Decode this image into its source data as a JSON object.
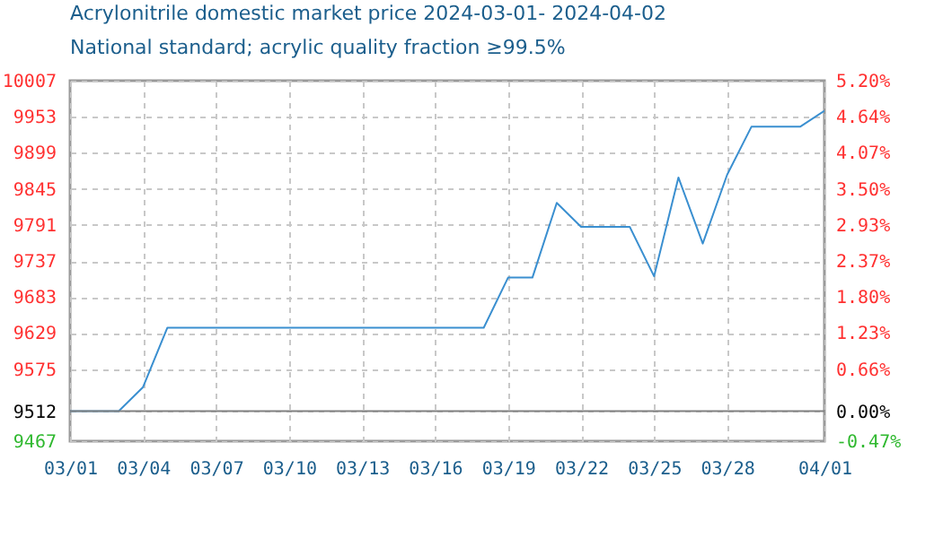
{
  "chart_data": {
    "type": "line",
    "title": "Acrylonitrile domestic market price 2024-03-01- 2024-04-02",
    "subtitle": "National standard; acrylic quality fraction ≥99.5%",
    "x": [
      "2024-03-01",
      "2024-03-02",
      "2024-03-03",
      "2024-03-04",
      "2024-03-05",
      "2024-03-06",
      "2024-03-07",
      "2024-03-08",
      "2024-03-09",
      "2024-03-10",
      "2024-03-11",
      "2024-03-12",
      "2024-03-13",
      "2024-03-14",
      "2024-03-15",
      "2024-03-16",
      "2024-03-17",
      "2024-03-18",
      "2024-03-19",
      "2024-03-20",
      "2024-03-21",
      "2024-03-22",
      "2024-03-23",
      "2024-03-24",
      "2024-03-25",
      "2024-03-26",
      "2024-03-27",
      "2024-03-28",
      "2024-03-29",
      "2024-03-30",
      "2024-03-31",
      "2024-04-01"
    ],
    "series": [
      {
        "color": "#3a8fd0",
        "values": [
          9512,
          9512,
          9512,
          9548,
          9637,
          9637,
          9637,
          9637,
          9637,
          9637,
          9637,
          9637,
          9637,
          9637,
          9637,
          9637,
          9637,
          9637,
          9712,
          9712,
          9824,
          9788,
          9788,
          9788,
          9714,
          9862,
          9763,
          9866,
          9938,
          9938,
          9938,
          9962
        ]
      }
    ],
    "xlim": [
      "2024-03-01",
      "2024-04-01"
    ],
    "xticks": [
      {
        "value": "2024-03-01",
        "label": "03/01"
      },
      {
        "value": "2024-03-04",
        "label": "03/04"
      },
      {
        "value": "2024-03-07",
        "label": "03/07"
      },
      {
        "value": "2024-03-10",
        "label": "03/10"
      },
      {
        "value": "2024-03-13",
        "label": "03/13"
      },
      {
        "value": "2024-03-16",
        "label": "03/16"
      },
      {
        "value": "2024-03-19",
        "label": "03/19"
      },
      {
        "value": "2024-03-22",
        "label": "03/22"
      },
      {
        "value": "2024-03-25",
        "label": "03/25"
      },
      {
        "value": "2024-03-28",
        "label": "03/28"
      },
      {
        "value": "2024-04-01",
        "label": "04/01"
      }
    ],
    "ylim": [
      9467,
      10007
    ],
    "yticks": [
      9467,
      9512,
      9575,
      9629,
      9683,
      9737,
      9791,
      9845,
      9899,
      9953,
      10007
    ],
    "y2lim": [
      -0.47,
      5.2
    ],
    "y2ticks": [
      {
        "value": -0.47,
        "label": "-0.47%"
      },
      {
        "value": 0,
        "label": "0.00%"
      },
      {
        "value": 0.66,
        "label": "0.66%"
      },
      {
        "value": 1.23,
        "label": "1.23%"
      },
      {
        "value": 1.8,
        "label": "1.80%"
      },
      {
        "value": 2.37,
        "label": "2.37%"
      },
      {
        "value": 2.93,
        "label": "2.93%"
      },
      {
        "value": 3.5,
        "label": "3.50%"
      },
      {
        "value": 4.07,
        "label": "4.07%"
      },
      {
        "value": 4.64,
        "label": "4.64%"
      },
      {
        "value": 5.2,
        "label": "5.20%"
      }
    ],
    "ref_lines": [
      {
        "axis": "y",
        "value": 9512,
        "color": "#808080"
      }
    ],
    "grid": true,
    "marker": "none",
    "line_style": "solid"
  }
}
